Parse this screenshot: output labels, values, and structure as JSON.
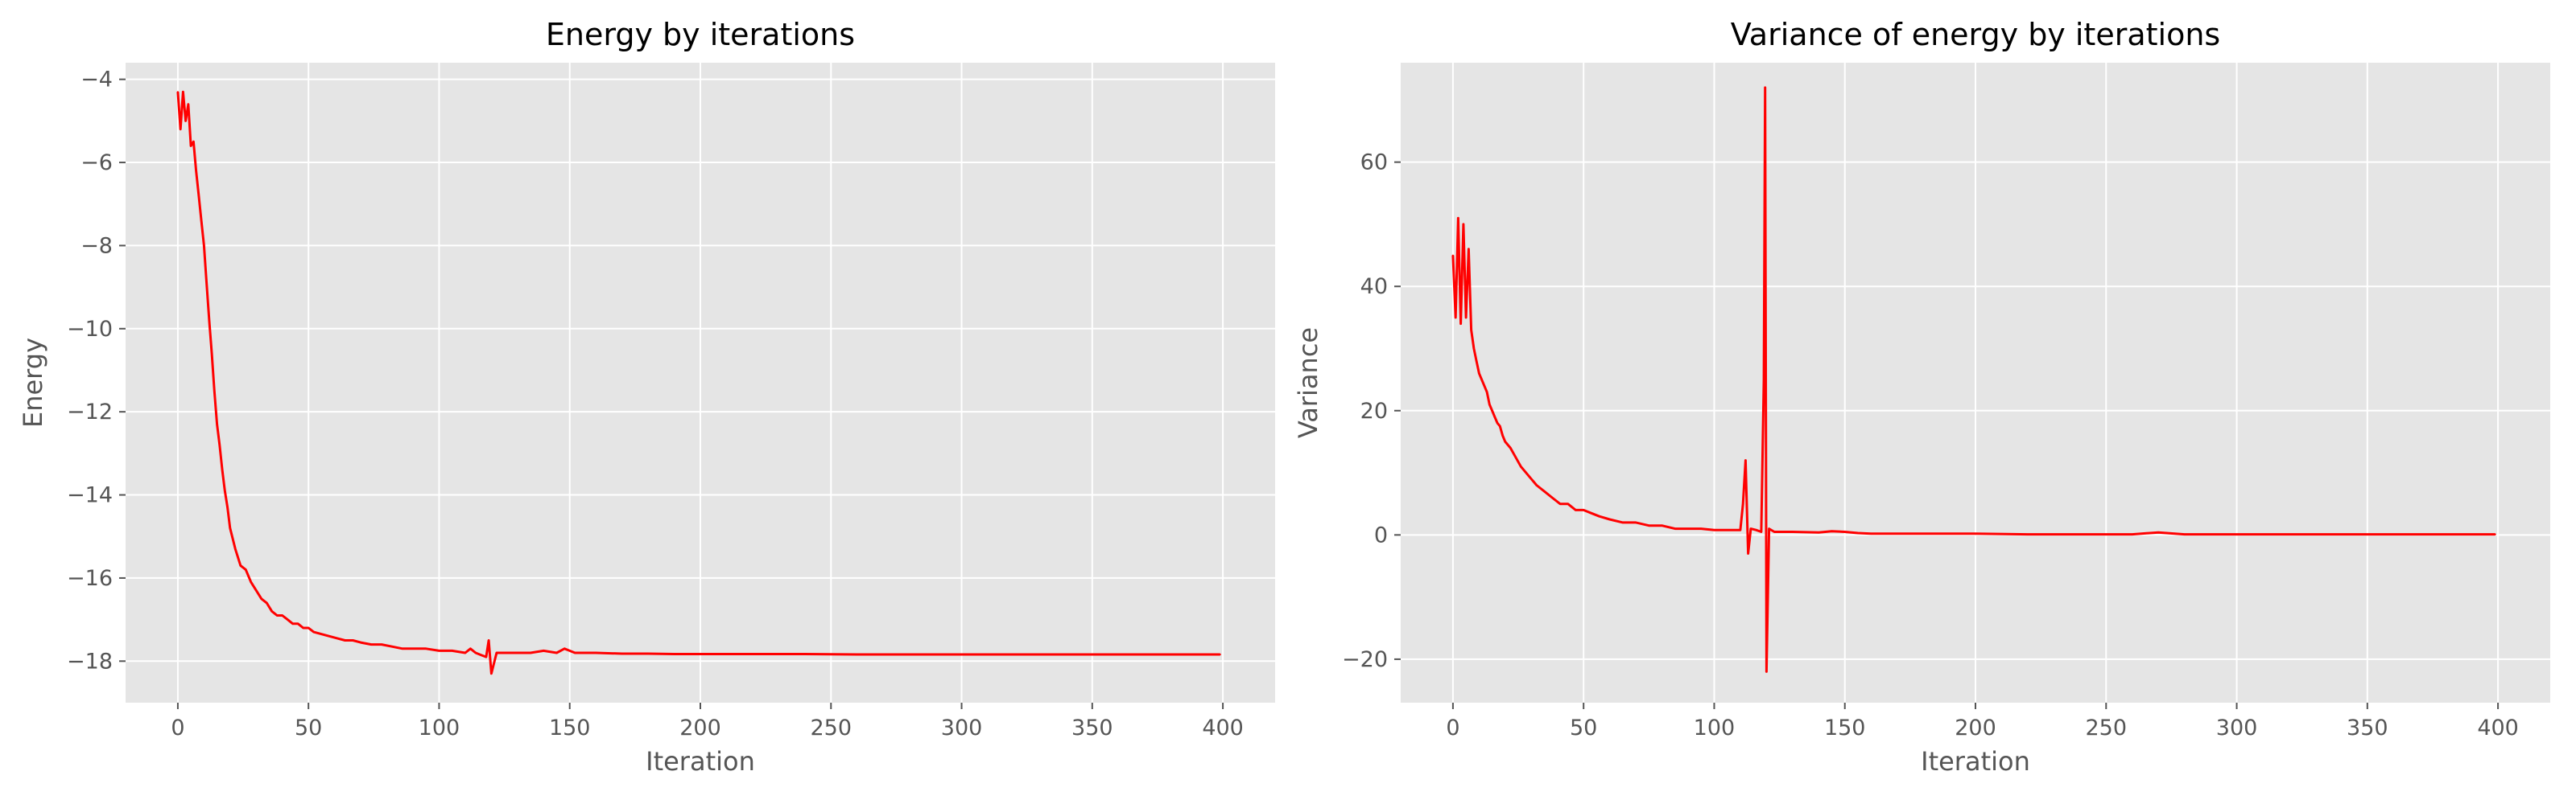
{
  "chart_data": [
    {
      "type": "line",
      "title": "Energy by iterations",
      "xlabel": "Iteration",
      "ylabel": "Energy",
      "xlim": [
        -20,
        420
      ],
      "ylim": [
        -19.0,
        -3.6
      ],
      "xticks": [
        0,
        50,
        100,
        150,
        200,
        250,
        300,
        350,
        400
      ],
      "yticks": [
        -18,
        -16,
        -14,
        -12,
        -10,
        -8,
        -6,
        -4
      ],
      "ytick_labels": [
        "−18",
        "−16",
        "−14",
        "−12",
        "−10",
        "−8",
        "−6",
        "−4"
      ],
      "grid": true,
      "series": [
        {
          "color": "#ff0000",
          "x": [
            0,
            1,
            2,
            3,
            4,
            5,
            6,
            7,
            8,
            9,
            10,
            11,
            12,
            13,
            14,
            15,
            16,
            17,
            18,
            19,
            20,
            22,
            24,
            26,
            28,
            30,
            32,
            34,
            36,
            38,
            40,
            42,
            44,
            46,
            48,
            50,
            52,
            55,
            58,
            61,
            64,
            67,
            70,
            74,
            78,
            82,
            86,
            90,
            95,
            100,
            105,
            110,
            112,
            114,
            116,
            118,
            119,
            120,
            122,
            125,
            130,
            135,
            140,
            145,
            148,
            150,
            152,
            155,
            160,
            170,
            180,
            190,
            200,
            220,
            240,
            260,
            280,
            300,
            320,
            340,
            360,
            380,
            399
          ],
          "values": [
            -4.3,
            -5.2,
            -4.3,
            -5.0,
            -4.6,
            -5.6,
            -5.5,
            -6.2,
            -6.8,
            -7.4,
            -8.0,
            -8.9,
            -9.8,
            -10.6,
            -11.5,
            -12.3,
            -12.8,
            -13.4,
            -13.9,
            -14.3,
            -14.8,
            -15.3,
            -15.7,
            -15.8,
            -16.1,
            -16.3,
            -16.5,
            -16.6,
            -16.8,
            -16.9,
            -16.9,
            -17.0,
            -17.1,
            -17.1,
            -17.2,
            -17.2,
            -17.3,
            -17.35,
            -17.4,
            -17.45,
            -17.5,
            -17.5,
            -17.55,
            -17.6,
            -17.6,
            -17.65,
            -17.7,
            -17.7,
            -17.7,
            -17.75,
            -17.75,
            -17.8,
            -17.7,
            -17.8,
            -17.85,
            -17.9,
            -17.5,
            -18.3,
            -17.8,
            -17.8,
            -17.8,
            -17.8,
            -17.75,
            -17.8,
            -17.7,
            -17.75,
            -17.8,
            -17.8,
            -17.8,
            -17.82,
            -17.82,
            -17.83,
            -17.83,
            -17.83,
            -17.83,
            -17.84,
            -17.84,
            -17.84,
            -17.84,
            -17.84,
            -17.84,
            -17.84,
            -17.84
          ]
        }
      ]
    },
    {
      "type": "line",
      "title": "Variance of energy by iterations",
      "xlabel": "Iteration",
      "ylabel": "Variance",
      "xlim": [
        -20,
        420
      ],
      "ylim": [
        -27,
        76
      ],
      "xticks": [
        0,
        50,
        100,
        150,
        200,
        250,
        300,
        350,
        400
      ],
      "yticks": [
        -20,
        0,
        20,
        40,
        60
      ],
      "ytick_labels": [
        "−20",
        "0",
        "20",
        "40",
        "60"
      ],
      "grid": true,
      "series": [
        {
          "color": "#ff0000",
          "x": [
            0,
            1,
            2,
            3,
            4,
            5,
            6,
            7,
            8,
            9,
            10,
            11,
            12,
            13,
            14,
            15,
            16,
            17,
            18,
            19,
            20,
            22,
            24,
            26,
            28,
            30,
            32,
            35,
            38,
            41,
            44,
            47,
            50,
            53,
            56,
            60,
            65,
            70,
            75,
            80,
            85,
            90,
            95,
            100,
            105,
            110,
            111,
            112,
            113,
            114,
            116,
            118,
            119,
            119.5,
            120,
            121,
            123,
            126,
            130,
            140,
            145,
            150,
            155,
            160,
            170,
            180,
            200,
            220,
            240,
            260,
            270,
            280,
            300,
            320,
            340,
            360,
            380,
            399
          ],
          "values": [
            45,
            35,
            51,
            34,
            50,
            35,
            46,
            33,
            30,
            28,
            26,
            25,
            24,
            23,
            21,
            20,
            19,
            18,
            17.5,
            16,
            15,
            14,
            12.5,
            11,
            10,
            9,
            8,
            7,
            6,
            5,
            5,
            4,
            4,
            3.5,
            3,
            2.5,
            2,
            2,
            1.5,
            1.5,
            1,
            1,
            1,
            0.8,
            0.8,
            0.8,
            5,
            12,
            -3,
            1,
            0.8,
            0.5,
            25,
            72,
            -22,
            1,
            0.5,
            0.5,
            0.5,
            0.4,
            0.6,
            0.5,
            0.3,
            0.2,
            0.2,
            0.2,
            0.2,
            0.1,
            0.1,
            0.1,
            0.4,
            0.1,
            0.1,
            0.1,
            0.1,
            0.1,
            0.1,
            0.1
          ]
        }
      ]
    }
  ]
}
